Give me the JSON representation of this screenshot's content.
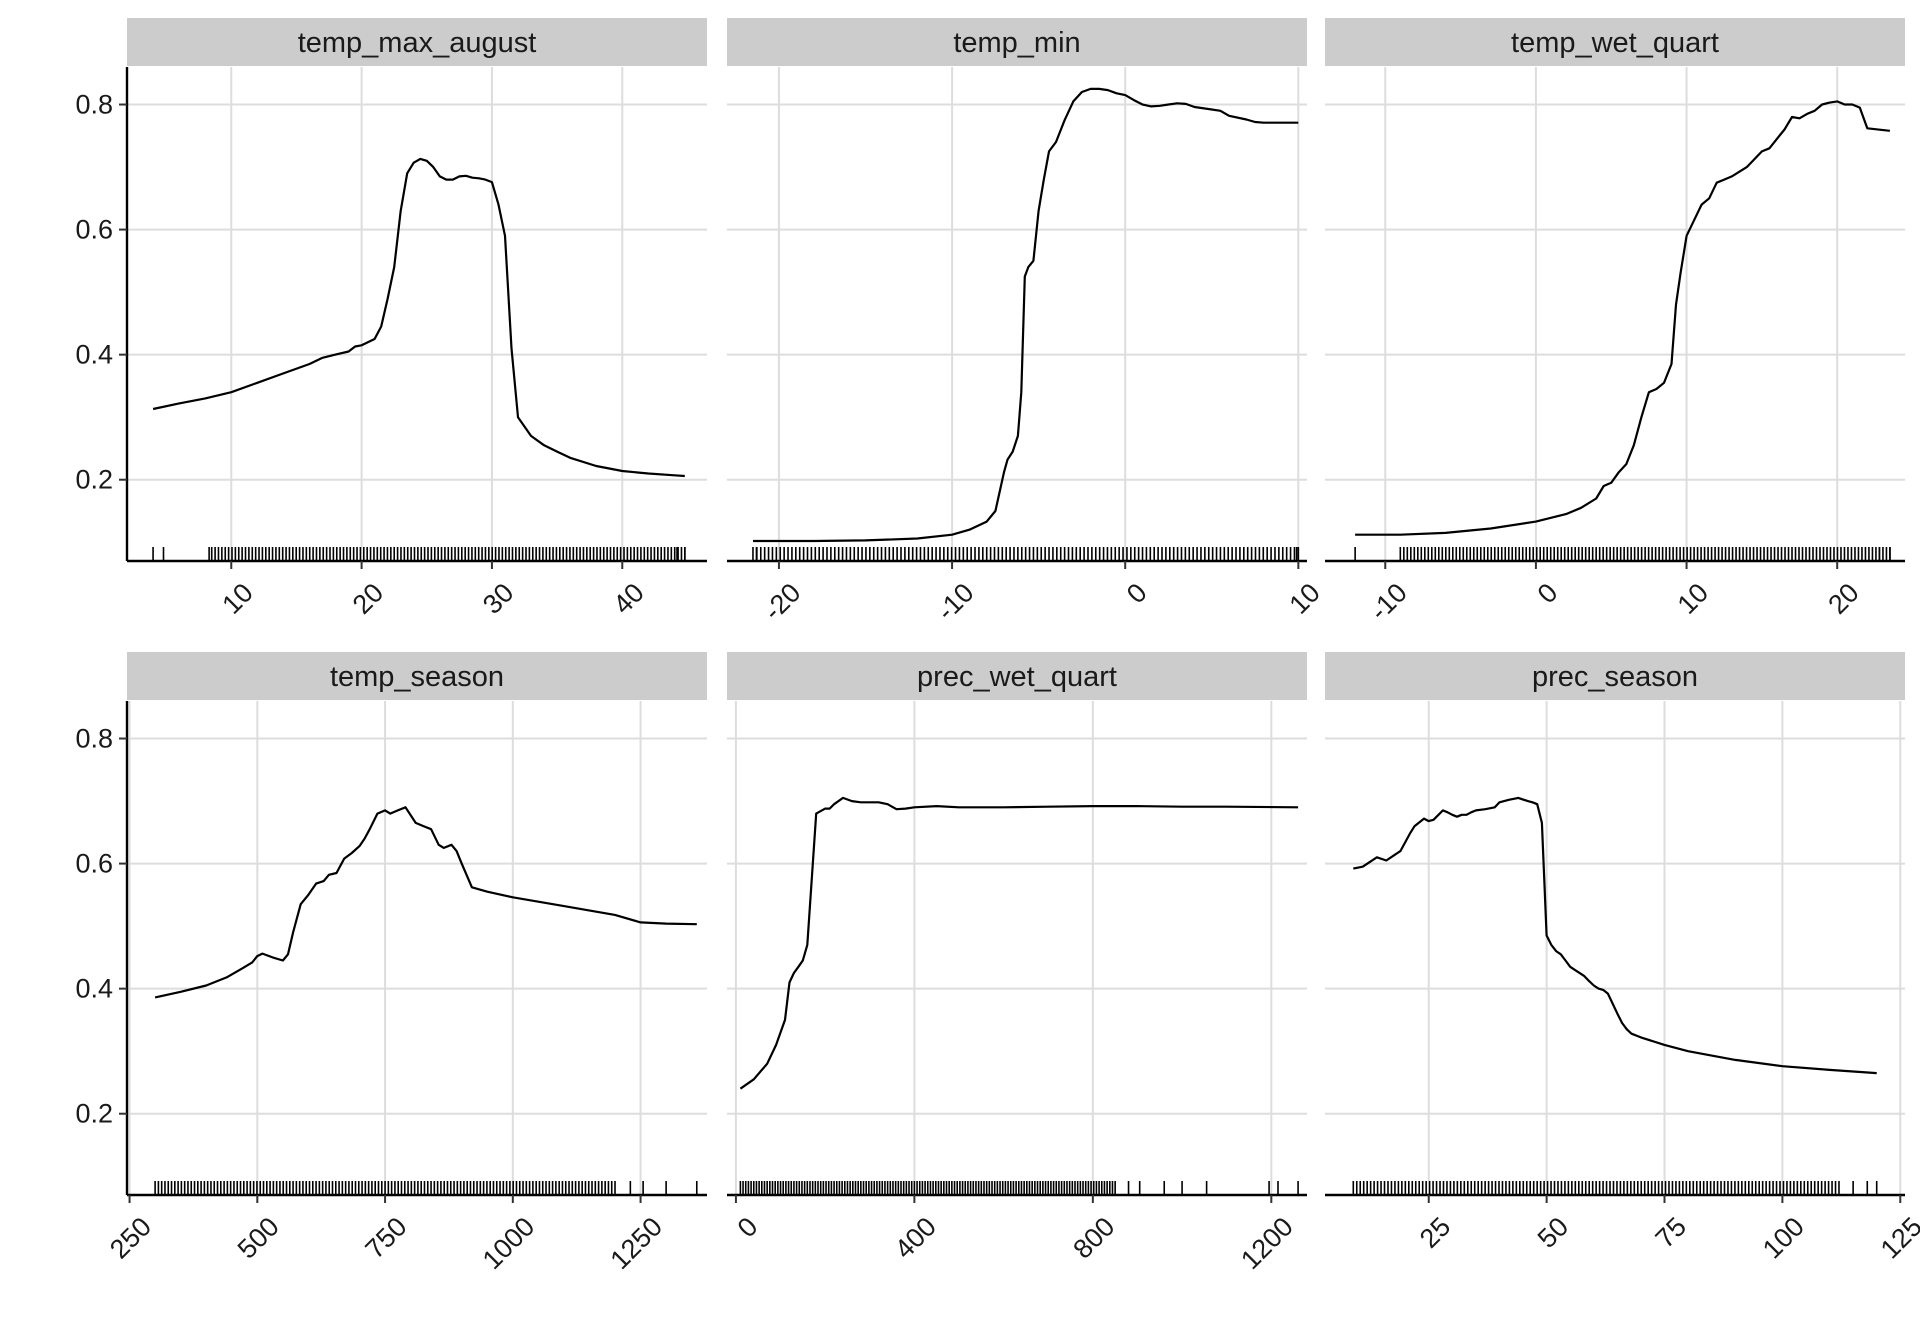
{
  "chart_data": {
    "type": "line",
    "title": "",
    "xlabel": "",
    "ylabel": "",
    "grid": true,
    "ylim": [
      0.07,
      0.86
    ],
    "yticks": [
      0.2,
      0.4,
      0.6,
      0.8
    ],
    "ytick_labels": [
      "0.2",
      "0.4",
      "0.6",
      "0.8"
    ],
    "panels": [
      {
        "name": "temp_max_august",
        "xlim": [
          2.0,
          46.5
        ],
        "xticks": [
          10,
          20,
          30,
          40
        ],
        "xtick_labels": [
          "10",
          "20",
          "30",
          "40"
        ],
        "x": [
          4.0,
          6,
          8,
          10,
          12,
          14,
          16,
          17,
          18,
          19,
          19.5,
          20,
          21,
          21.5,
          22,
          22.5,
          23,
          23.5,
          24,
          24.5,
          25,
          25.5,
          26,
          26.5,
          27,
          27.5,
          28,
          28.5,
          29,
          29.5,
          30,
          30.5,
          31,
          31.5,
          32,
          33,
          34,
          35,
          36,
          38,
          40,
          42,
          44,
          44.8
        ],
        "y": [
          0.313,
          0.322,
          0.33,
          0.34,
          0.355,
          0.37,
          0.385,
          0.395,
          0.4,
          0.405,
          0.413,
          0.415,
          0.425,
          0.445,
          0.49,
          0.54,
          0.63,
          0.69,
          0.707,
          0.713,
          0.71,
          0.7,
          0.685,
          0.68,
          0.68,
          0.685,
          0.686,
          0.683,
          0.682,
          0.68,
          0.676,
          0.64,
          0.59,
          0.41,
          0.3,
          0.27,
          0.255,
          0.245,
          0.235,
          0.222,
          0.214,
          0.21,
          0.207,
          0.206
        ],
        "rug": {
          "from": 8.5,
          "to": 44.8,
          "extra": [
            4.0,
            4.8,
            8.3,
            44.2,
            44.8
          ]
        }
      },
      {
        "name": "temp_min",
        "xlim": [
          -23.0,
          10.5
        ],
        "xticks": [
          -20,
          -10,
          0,
          10
        ],
        "xtick_labels": [
          "-20",
          "-10",
          "0",
          "10"
        ],
        "x": [
          -21.5,
          -18,
          -15,
          -12,
          -10,
          -9,
          -8,
          -7.5,
          -7,
          -6.8,
          -6.5,
          -6.2,
          -6.0,
          -5.8,
          -5.6,
          -5.3,
          -5.0,
          -4.7,
          -4.4,
          -4.0,
          -3.5,
          -3.0,
          -2.5,
          -2.0,
          -1.5,
          -1.0,
          -0.5,
          0,
          0.5,
          1,
          1.5,
          2,
          2.5,
          3,
          3.5,
          4,
          5,
          5.5,
          6,
          7,
          7.5,
          8,
          10
        ],
        "y": [
          0.102,
          0.102,
          0.103,
          0.106,
          0.112,
          0.12,
          0.133,
          0.15,
          0.212,
          0.232,
          0.245,
          0.27,
          0.34,
          0.525,
          0.54,
          0.55,
          0.63,
          0.68,
          0.725,
          0.74,
          0.775,
          0.805,
          0.82,
          0.825,
          0.825,
          0.823,
          0.818,
          0.815,
          0.807,
          0.8,
          0.797,
          0.798,
          0.8,
          0.802,
          0.801,
          0.796,
          0.792,
          0.79,
          0.782,
          0.776,
          0.772,
          0.771,
          0.771
        ],
        "rug": {
          "from": -21.5,
          "to": 10.0,
          "extra": [
            -21.3,
            9.9
          ]
        }
      },
      {
        "name": "temp_wet_quart",
        "xlim": [
          -14.0,
          24.5
        ],
        "xticks": [
          -10,
          0,
          10,
          20
        ],
        "xtick_labels": [
          "-10",
          "0",
          "10",
          "20"
        ],
        "x": [
          -12.0,
          -9,
          -6,
          -3,
          0,
          2,
          3,
          4,
          4.5,
          5,
          5.5,
          6,
          6.5,
          7,
          7.5,
          8,
          8.5,
          9,
          9.3,
          9.6,
          10,
          10.5,
          11,
          11.5,
          12,
          12.5,
          13,
          14,
          15,
          15.5,
          16,
          16.5,
          17,
          17.5,
          18,
          18.5,
          19,
          19.5,
          20,
          20.5,
          21,
          21.5,
          22,
          23.5
        ],
        "y": [
          0.112,
          0.112,
          0.115,
          0.122,
          0.133,
          0.145,
          0.155,
          0.17,
          0.19,
          0.195,
          0.212,
          0.225,
          0.255,
          0.3,
          0.34,
          0.345,
          0.355,
          0.385,
          0.48,
          0.53,
          0.59,
          0.615,
          0.64,
          0.65,
          0.675,
          0.68,
          0.685,
          0.7,
          0.725,
          0.73,
          0.745,
          0.76,
          0.78,
          0.778,
          0.785,
          0.79,
          0.8,
          0.803,
          0.805,
          0.8,
          0.8,
          0.795,
          0.762,
          0.758
        ],
        "rug": {
          "from": -9.0,
          "to": 23.5,
          "extra": [
            -12.0,
            22.8,
            23.5
          ]
        }
      },
      {
        "name": "temp_season",
        "xlim": [
          245,
          1380
        ],
        "xticks": [
          250,
          500,
          750,
          1000,
          1250
        ],
        "xtick_labels": [
          "250",
          "500",
          "750",
          "1000",
          "1250"
        ],
        "x": [
          300,
          350,
          400,
          440,
          470,
          490,
          500,
          510,
          530,
          550,
          560,
          570,
          585,
          600,
          615,
          630,
          640,
          655,
          670,
          685,
          700,
          710,
          720,
          735,
          750,
          760,
          775,
          790,
          810,
          825,
          840,
          855,
          865,
          880,
          890,
          900,
          920,
          950,
          1000,
          1100,
          1200,
          1250,
          1300,
          1360
        ],
        "y": [
          0.386,
          0.395,
          0.405,
          0.418,
          0.432,
          0.442,
          0.452,
          0.456,
          0.45,
          0.445,
          0.455,
          0.49,
          0.535,
          0.55,
          0.568,
          0.572,
          0.582,
          0.585,
          0.608,
          0.617,
          0.628,
          0.64,
          0.655,
          0.68,
          0.685,
          0.68,
          0.685,
          0.69,
          0.665,
          0.66,
          0.655,
          0.63,
          0.625,
          0.63,
          0.62,
          0.6,
          0.562,
          0.555,
          0.546,
          0.532,
          0.518,
          0.506,
          0.504,
          0.503
        ],
        "rug": {
          "from": 300,
          "to": 1200,
          "extra": [
            1230,
            1255,
            1300,
            1360
          ]
        }
      },
      {
        "name": "prec_wet_quart",
        "xlim": [
          -20,
          1280
        ],
        "xticks": [
          0,
          400,
          800,
          1200
        ],
        "xtick_labels": [
          "0",
          "400",
          "800",
          "1200"
        ],
        "x": [
          10,
          40,
          70,
          90,
          110,
          120,
          130,
          140,
          150,
          160,
          180,
          200,
          210,
          220,
          240,
          260,
          280,
          300,
          320,
          340,
          360,
          380,
          400,
          450,
          500,
          600,
          700,
          800,
          900,
          1000,
          1100,
          1260
        ],
        "y": [
          0.24,
          0.255,
          0.28,
          0.31,
          0.35,
          0.41,
          0.425,
          0.435,
          0.445,
          0.47,
          0.68,
          0.688,
          0.688,
          0.695,
          0.705,
          0.7,
          0.698,
          0.698,
          0.698,
          0.695,
          0.687,
          0.688,
          0.69,
          0.692,
          0.69,
          0.69,
          0.691,
          0.692,
          0.692,
          0.691,
          0.691,
          0.69
        ],
        "rug": {
          "from": 10,
          "to": 850,
          "extra": [
            880,
            905,
            960,
            1000,
            1055,
            1195,
            1215,
            1260
          ]
        }
      },
      {
        "name": "prec_season",
        "xlim": [
          3,
          126
        ],
        "xticks": [
          25,
          50,
          75,
          100,
          125
        ],
        "xtick_labels": [
          "25",
          "50",
          "75",
          "100",
          "125"
        ],
        "x": [
          9,
          11,
          14,
          16,
          18,
          19,
          21,
          22,
          24,
          25,
          26,
          28,
          29,
          30,
          31,
          32,
          33,
          34,
          35,
          37,
          39,
          40,
          42,
          44,
          46,
          47,
          48,
          49,
          50,
          51,
          52,
          53,
          54,
          55,
          56,
          58,
          59,
          60,
          61,
          62,
          63,
          65,
          66,
          67,
          68,
          70,
          75,
          80,
          90,
          100,
          110,
          120
        ],
        "y": [
          0.592,
          0.595,
          0.61,
          0.605,
          0.615,
          0.62,
          0.648,
          0.66,
          0.672,
          0.668,
          0.67,
          0.685,
          0.682,
          0.678,
          0.675,
          0.678,
          0.678,
          0.682,
          0.685,
          0.687,
          0.69,
          0.698,
          0.702,
          0.705,
          0.7,
          0.698,
          0.695,
          0.665,
          0.485,
          0.47,
          0.46,
          0.455,
          0.445,
          0.435,
          0.43,
          0.42,
          0.412,
          0.405,
          0.4,
          0.398,
          0.392,
          0.36,
          0.345,
          0.335,
          0.328,
          0.322,
          0.31,
          0.3,
          0.286,
          0.276,
          0.27,
          0.265
        ],
        "rug": {
          "from": 9,
          "to": 112,
          "extra": [
            115,
            118,
            120
          ]
        }
      }
    ]
  }
}
